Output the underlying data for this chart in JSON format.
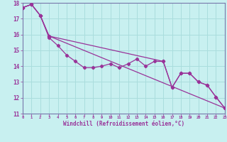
{
  "xlabel": "Windchill (Refroidissement éolien,°C)",
  "background_color": "#c8f0f0",
  "grid_color": "#aadddd",
  "line_color": "#993399",
  "spine_color": "#7777aa",
  "xmin": 0,
  "xmax": 23,
  "ymin": 11,
  "ymax": 18,
  "xticks": [
    0,
    1,
    2,
    3,
    4,
    5,
    6,
    7,
    8,
    9,
    10,
    11,
    12,
    13,
    14,
    15,
    16,
    17,
    18,
    19,
    20,
    21,
    22,
    23
  ],
  "yticks": [
    11,
    12,
    13,
    14,
    15,
    16,
    17,
    18
  ],
  "series1_x": [
    0,
    1,
    2,
    3,
    4,
    5,
    6,
    7,
    8,
    9,
    10,
    11,
    12,
    13,
    14,
    15,
    16,
    17,
    18,
    19,
    20,
    21,
    22,
    23
  ],
  "series1_y": [
    17.7,
    17.9,
    17.2,
    15.8,
    15.3,
    14.7,
    14.3,
    13.9,
    13.9,
    14.0,
    14.15,
    13.9,
    14.15,
    14.45,
    14.0,
    14.3,
    14.3,
    12.65,
    13.55,
    13.55,
    13.0,
    12.8,
    12.05,
    11.35
  ],
  "series2_x": [
    0,
    1,
    2,
    3,
    23
  ],
  "series2_y": [
    17.7,
    17.9,
    17.2,
    15.9,
    11.35
  ],
  "series3_x": [
    0,
    1,
    2,
    3,
    16,
    17,
    18,
    19,
    20,
    21,
    22,
    23
  ],
  "series3_y": [
    17.7,
    17.9,
    17.2,
    15.9,
    14.3,
    12.65,
    13.55,
    13.55,
    13.0,
    12.8,
    12.05,
    11.35
  ]
}
